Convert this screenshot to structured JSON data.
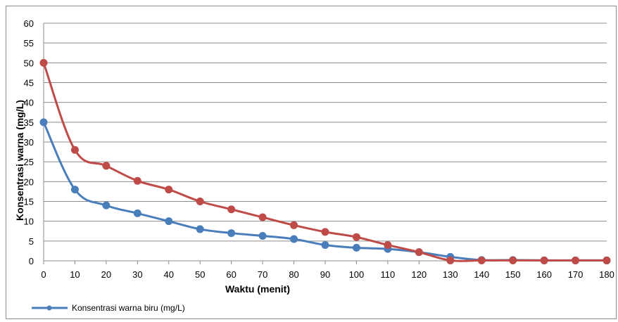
{
  "chart_data": {
    "type": "line",
    "xlabel": "Waktu (menit)",
    "ylabel": "Konsentrasi warna (mg/L)",
    "x": [
      0,
      10,
      20,
      30,
      40,
      50,
      60,
      70,
      80,
      90,
      100,
      110,
      120,
      130,
      140,
      150,
      160,
      170,
      180
    ],
    "xlim": [
      0,
      180
    ],
    "ylim": [
      0,
      60
    ],
    "yticks": [
      0,
      5,
      10,
      15,
      20,
      25,
      30,
      35,
      40,
      45,
      50,
      55,
      60
    ],
    "grid": true,
    "legend_position": "bottom-left",
    "series": [
      {
        "name": "Konsentrasi warna biru (mg/L)",
        "color": "#4a7ebb",
        "values": [
          35,
          18,
          14,
          12,
          10,
          8,
          7,
          6.3,
          5.5,
          4,
          3.3,
          3,
          2.2,
          1,
          0.2,
          0.2,
          0.1,
          0.1,
          0.1
        ]
      },
      {
        "color": "#be4b48",
        "values": [
          50,
          28,
          24,
          20.2,
          18,
          15,
          13,
          11,
          9,
          7.3,
          6,
          4,
          2.2,
          0.1,
          0.1,
          0.1,
          0.1,
          0.1,
          0.1
        ]
      }
    ]
  }
}
